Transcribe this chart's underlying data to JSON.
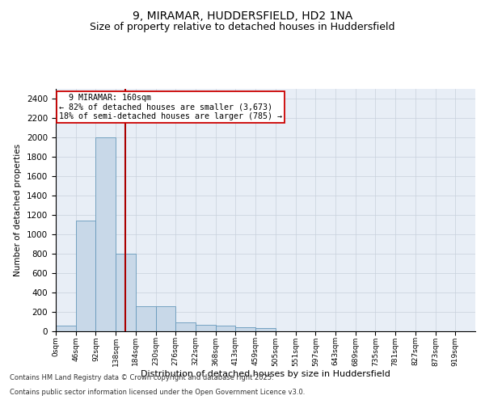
{
  "title_line1": "9, MIRAMAR, HUDDERSFIELD, HD2 1NA",
  "title_line2": "Size of property relative to detached houses in Huddersfield",
  "xlabel": "Distribution of detached houses by size in Huddersfield",
  "ylabel": "Number of detached properties",
  "footnote_line1": "Contains HM Land Registry data © Crown copyright and database right 2025.",
  "footnote_line2": "Contains public sector information licensed under the Open Government Licence v3.0.",
  "bar_labels": [
    "0sqm",
    "46sqm",
    "92sqm",
    "138sqm",
    "184sqm",
    "230sqm",
    "276sqm",
    "322sqm",
    "368sqm",
    "413sqm",
    "459sqm",
    "505sqm",
    "551sqm",
    "597sqm",
    "643sqm",
    "689sqm",
    "735sqm",
    "781sqm",
    "827sqm",
    "873sqm",
    "919sqm"
  ],
  "bar_values": [
    55,
    1140,
    2000,
    800,
    260,
    260,
    90,
    65,
    55,
    40,
    30,
    0,
    0,
    0,
    0,
    0,
    0,
    0,
    0,
    0,
    0
  ],
  "bar_color": "#c8d8e8",
  "bar_edge_color": "#6699bb",
  "highlight_label": "9 MIRAMAR: 160sqm",
  "annotation_line1": "← 82% of detached houses are smaller (3,673)",
  "annotation_line2": "18% of semi-detached houses are larger (785) →",
  "vline_color": "#aa0000",
  "annotation_box_edge": "#cc0000",
  "ylim_max": 2500,
  "yticks": [
    0,
    200,
    400,
    600,
    800,
    1000,
    1200,
    1400,
    1600,
    1800,
    2000,
    2200,
    2400
  ],
  "bin_width": 46,
  "vline_x": 160,
  "grid_color": "#c8d0dc",
  "bg_color": "#e8eef6",
  "title1_fontsize": 10,
  "title2_fontsize": 9
}
